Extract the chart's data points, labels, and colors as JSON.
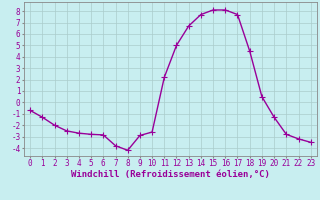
{
  "x": [
    0,
    1,
    2,
    3,
    4,
    5,
    6,
    7,
    8,
    9,
    10,
    11,
    12,
    13,
    14,
    15,
    16,
    17,
    18,
    19,
    20,
    21,
    22,
    23
  ],
  "y": [
    -0.7,
    -1.3,
    -2.0,
    -2.5,
    -2.7,
    -2.8,
    -2.85,
    -3.8,
    -4.2,
    -2.9,
    -2.6,
    2.2,
    5.0,
    6.7,
    7.7,
    8.1,
    8.1,
    7.7,
    4.5,
    0.5,
    -1.3,
    -2.8,
    -3.2,
    -3.5
  ],
  "line_color": "#990099",
  "marker": "+",
  "markersize": 4,
  "linewidth": 1.0,
  "bg_color": "#c8eef0",
  "grid_color": "#aacccc",
  "xlabel": "Windchill (Refroidissement éolien,°C)",
  "xlabel_fontsize": 6.5,
  "ylabel_ticks": [
    -4,
    -3,
    -2,
    -1,
    0,
    1,
    2,
    3,
    4,
    5,
    6,
    7,
    8
  ],
  "xlim": [
    -0.5,
    23.5
  ],
  "ylim": [
    -4.7,
    8.8
  ],
  "tick_fontsize": 5.5,
  "tick_color": "#990099",
  "spine_color": "#888888"
}
